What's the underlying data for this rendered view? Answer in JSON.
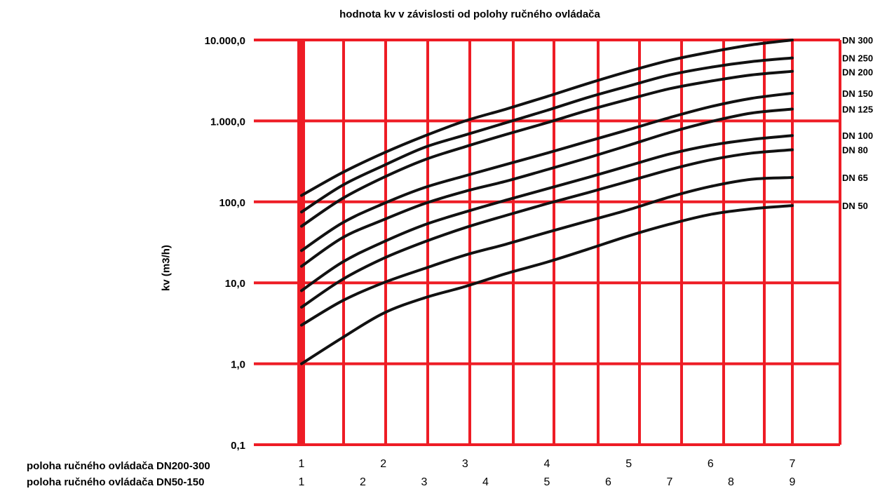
{
  "chart_data": {
    "type": "line",
    "title": "hodnota kv v závislosti od polohy ručného ovládača",
    "ylabel": "kv (m3/h)",
    "y_scale": "log",
    "ylim": [
      0.1,
      10000
    ],
    "y_ticks": [
      0.1,
      1,
      10,
      100,
      1000,
      10000
    ],
    "y_tick_labels": [
      "0,1",
      "1,0",
      "10,0",
      "100,0",
      "1.000,0",
      "10.000,0"
    ],
    "grid": true,
    "grid_color": "#ee1c25",
    "line_color": "#111111",
    "x_axis_rows": [
      {
        "label": "poloha ručného ovládača DN200-300",
        "ticks": [
          "1",
          "2",
          "3",
          "4",
          "5",
          "6",
          "7"
        ]
      },
      {
        "label": "poloha ručného ovládača DN50-150",
        "ticks": [
          "1",
          "2",
          "3",
          "4",
          "5",
          "6",
          "7",
          "8",
          "9"
        ]
      }
    ],
    "x_positions": [
      1,
      1.5,
      2,
      2.5,
      3,
      3.5,
      4,
      4.5,
      5,
      5.5,
      6,
      6.5,
      7
    ],
    "series": [
      {
        "name": "DN 300",
        "values": [
          120,
          230,
          400,
          650,
          1000,
          1400,
          2000,
          2900,
          4100,
          5600,
          7100,
          8700,
          10000
        ]
      },
      {
        "name": "DN 250",
        "values": [
          75,
          160,
          280,
          470,
          670,
          950,
          1350,
          1950,
          2700,
          3700,
          4600,
          5400,
          6000
        ]
      },
      {
        "name": "DN 200",
        "values": [
          50,
          110,
          200,
          330,
          480,
          680,
          950,
          1350,
          1850,
          2500,
          3100,
          3700,
          4100
        ]
      },
      {
        "name": "DN 150",
        "values": [
          25,
          55,
          95,
          150,
          210,
          290,
          400,
          560,
          780,
          1100,
          1500,
          1900,
          2200
        ]
      },
      {
        "name": "DN 125",
        "values": [
          16,
          36,
          60,
          95,
          135,
          180,
          250,
          350,
          500,
          720,
          980,
          1250,
          1400
        ]
      },
      {
        "name": "DN 100",
        "values": [
          8,
          18,
          32,
          52,
          75,
          105,
          145,
          200,
          280,
          390,
          500,
          590,
          660
        ]
      },
      {
        "name": "DN 80",
        "values": [
          5,
          11,
          20,
          32,
          48,
          68,
          95,
          130,
          180,
          250,
          330,
          400,
          440
        ]
      },
      {
        "name": "DN 65",
        "values": [
          3,
          6,
          10,
          15,
          22,
          30,
          42,
          58,
          80,
          115,
          155,
          190,
          200
        ]
      },
      {
        "name": "DN 50",
        "values": [
          1,
          2.1,
          4.2,
          6.5,
          9,
          13,
          18,
          26,
          38,
          53,
          70,
          82,
          90
        ]
      }
    ]
  }
}
